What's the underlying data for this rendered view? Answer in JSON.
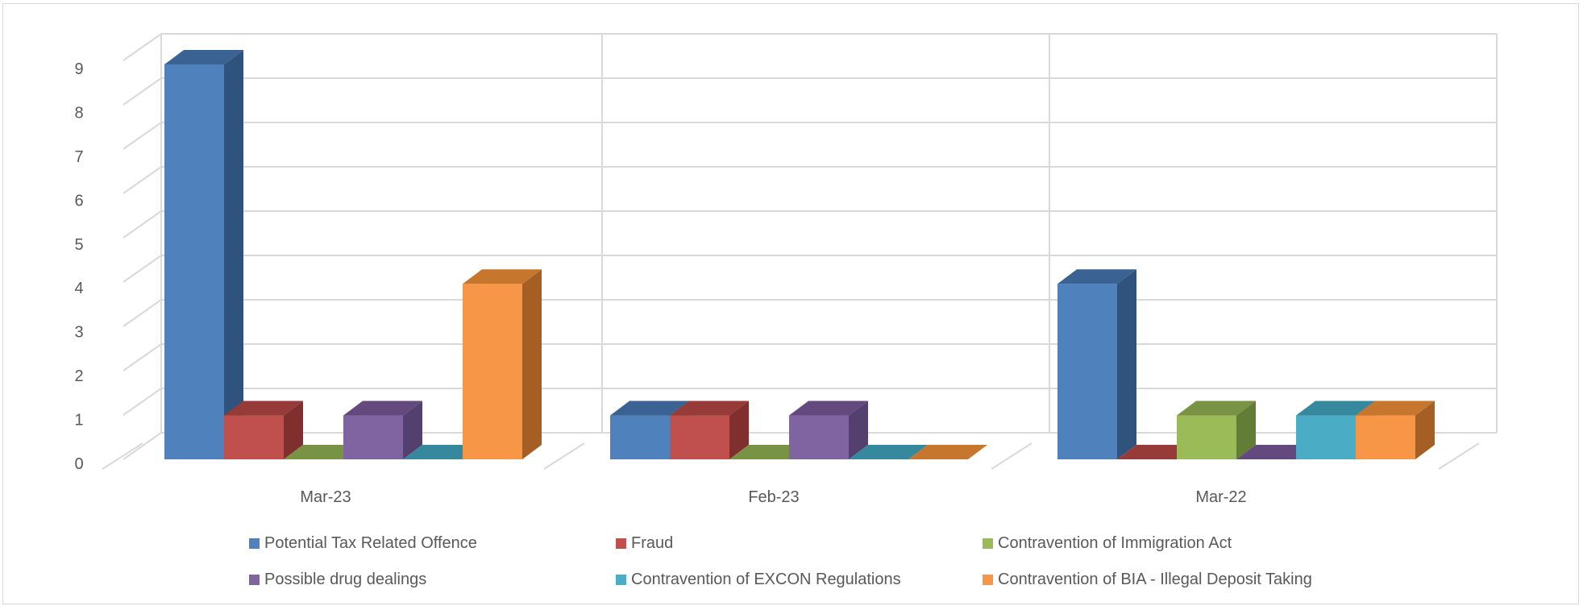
{
  "chart_data": {
    "type": "bar",
    "categories": [
      "Mar-23",
      "Feb-23",
      "Mar-22"
    ],
    "series": [
      {
        "name": "Potential Tax Related Offence",
        "values": [
          9,
          1,
          4
        ],
        "color": "#4F81BD",
        "side": "#30537E",
        "top": "#3A6293"
      },
      {
        "name": "Fraud",
        "values": [
          1,
          1,
          0
        ],
        "color": "#C0504D",
        "side": "#7F2F2D",
        "top": "#963B38"
      },
      {
        "name": "Contravention of Immigration Act",
        "values": [
          0,
          0,
          1
        ],
        "color": "#9BBB59",
        "side": "#627D36",
        "top": "#779343"
      },
      {
        "name": "Possible drug dealings",
        "values": [
          1,
          1,
          0
        ],
        "color": "#8064A2",
        "side": "#54406E",
        "top": "#64497F"
      },
      {
        "name": "Contravention of EXCON Regulations",
        "values": [
          0,
          0,
          1
        ],
        "color": "#4BACC6",
        "side": "#2D7687",
        "top": "#36889D"
      },
      {
        "name": "Contravention of BIA - Illegal Deposit Taking",
        "values": [
          4,
          0,
          1
        ],
        "color": "#F79646",
        "side": "#A55F24",
        "top": "#C7762E"
      }
    ],
    "y_ticks": [
      "0",
      "1",
      "2",
      "3",
      "4",
      "5",
      "6",
      "7",
      "8",
      "9"
    ],
    "ylim": [
      0,
      9
    ],
    "grid": true,
    "legend_position": "bottom",
    "title": "",
    "xlabel": "",
    "ylabel": ""
  }
}
